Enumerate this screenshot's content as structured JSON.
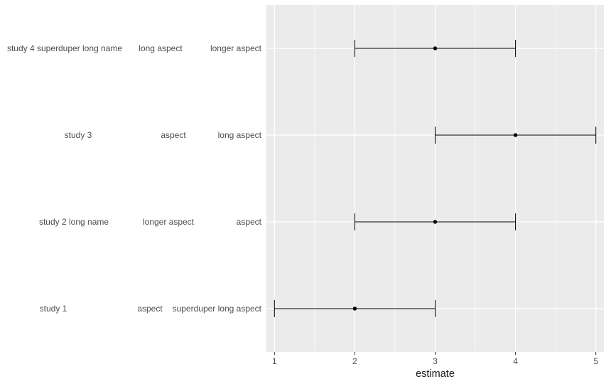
{
  "chart_data": {
    "type": "errorbar",
    "xlabel": "estimate",
    "xlim": [
      0.9,
      5.1
    ],
    "x_ticks": [
      1,
      2,
      3,
      4,
      5
    ],
    "x_tick_labels": [
      "1",
      "2",
      "3",
      "4",
      "5"
    ],
    "x_minor_ticks": [
      1.5,
      2.5,
      3.5,
      4.5
    ],
    "grid": true,
    "background": "#ebebeb",
    "rows": [
      {
        "study": "study 4 superduper long name",
        "aspect1": "long aspect",
        "aspect2": "longer aspect",
        "estimate": 3,
        "low": 2,
        "high": 4
      },
      {
        "study": "study 3",
        "aspect1": "aspect",
        "aspect2": "long aspect",
        "estimate": 4,
        "low": 3,
        "high": 5
      },
      {
        "study": "study 2 long name",
        "aspect1": "longer aspect",
        "aspect2": "aspect",
        "estimate": 3,
        "low": 2,
        "high": 4
      },
      {
        "study": "study 1",
        "aspect1": "aspect",
        "aspect2": "superduper long aspect",
        "estimate": 2,
        "low": 1,
        "high": 3
      }
    ]
  }
}
